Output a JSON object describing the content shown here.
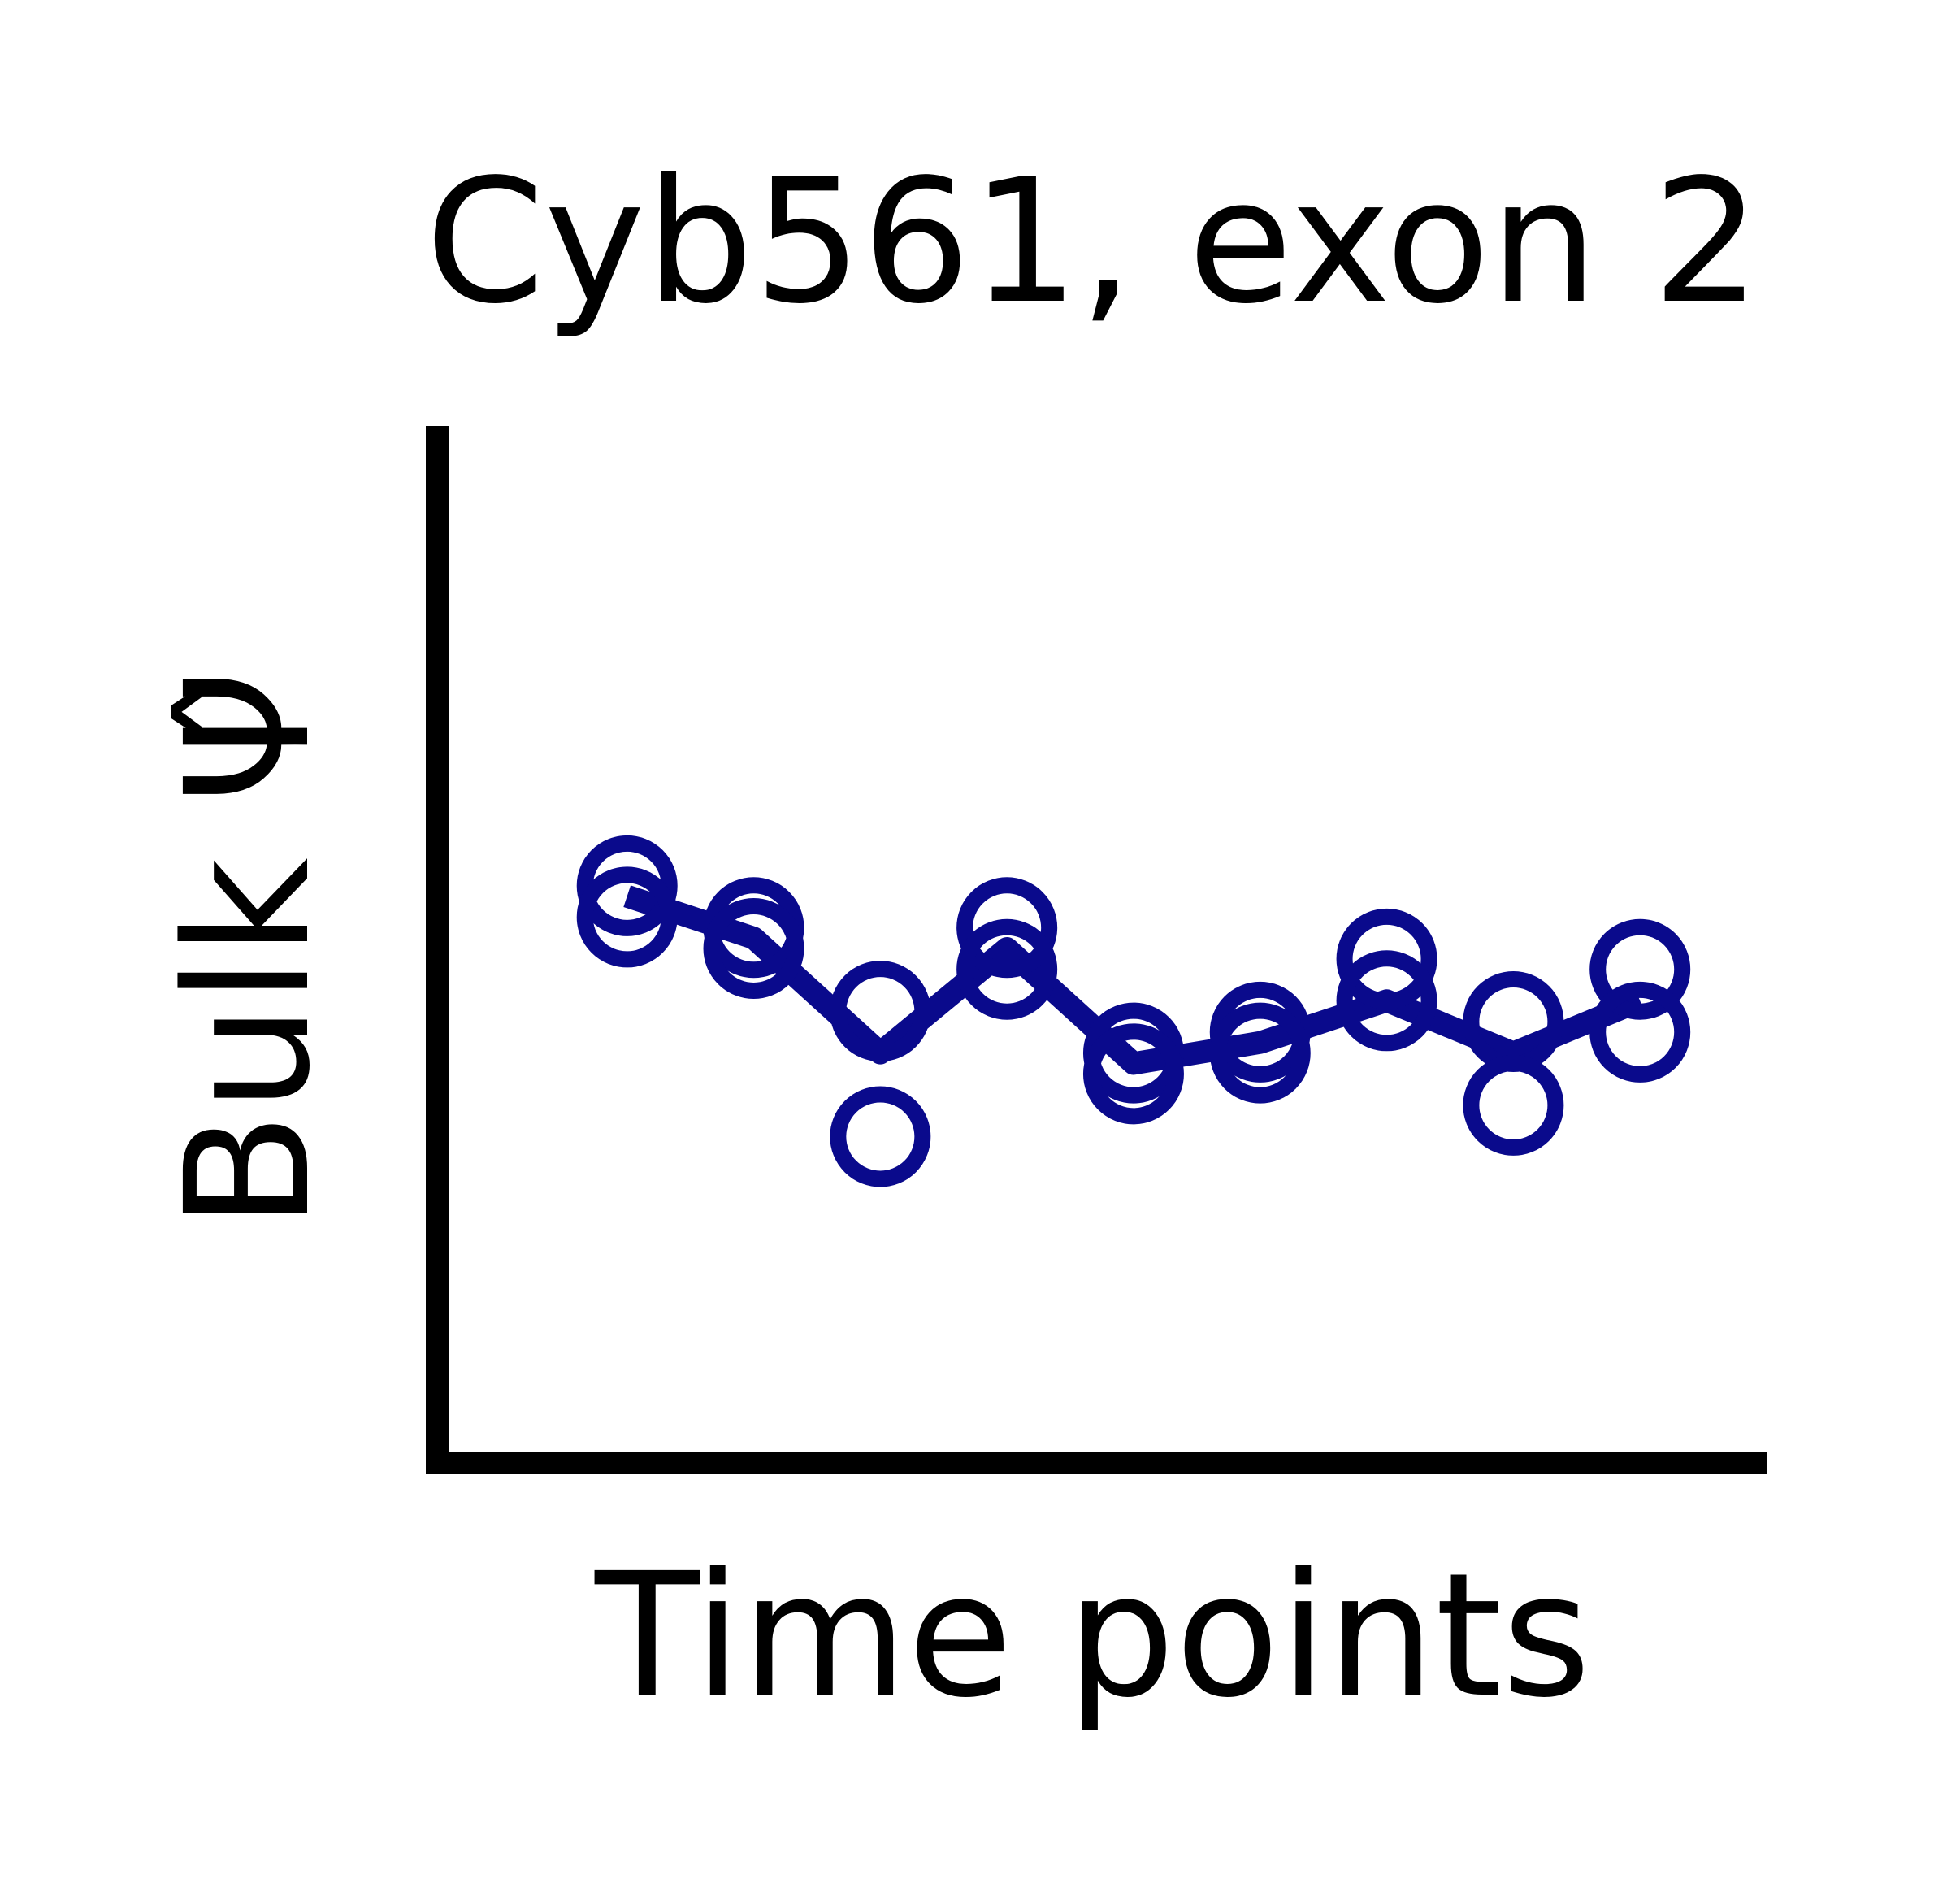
{
  "chart_data": {
    "type": "line",
    "title": "Cyb561, exon 2",
    "xlabel": "Time points",
    "ylabel": "Bulk Ψ̂",
    "x": [
      1,
      2,
      3,
      4,
      5,
      6,
      7,
      8,
      9
    ],
    "xlim": [
      -0.5,
      10.0
    ],
    "ylim": [
      0,
      1
    ],
    "grid": false,
    "legend": "none",
    "series": [
      {
        "values": [
          0.55,
          0.51,
          0.4,
          0.5,
          0.39,
          0.41,
          0.45,
          0.4,
          0.45
        ],
        "replicates": [
          [
            0.56,
            0.53
          ],
          [
            0.52,
            0.5
          ],
          [
            0.44,
            0.32
          ],
          [
            0.52,
            0.48
          ],
          [
            0.4,
            0.38
          ],
          [
            0.42,
            0.4
          ],
          [
            0.49,
            0.45
          ],
          [
            0.43,
            0.35
          ],
          [
            0.48,
            0.42
          ]
        ]
      }
    ],
    "colors": {
      "series": "#0a0a8c",
      "axes": "#000000"
    }
  }
}
